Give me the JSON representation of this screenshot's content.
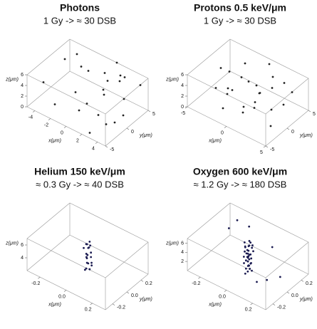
{
  "chart_data": [
    {
      "type": "scatter3d",
      "title": "Photons",
      "subtitle": "1 Gy -> ≈ 30 DSB",
      "color": "#222222",
      "xlabel": "x(μm)",
      "ylabel": "y(μm)",
      "zlabel": "z(μm)",
      "xlim": [
        -5,
        5
      ],
      "ylim": [
        -5,
        5
      ],
      "zlim": [
        0,
        6
      ],
      "xticks": [
        -4,
        -2,
        0,
        2,
        4
      ],
      "yticks": [
        -5,
        0,
        5
      ],
      "zticks": [
        0,
        2,
        4,
        6
      ],
      "x": [
        -4,
        -3,
        -1,
        1,
        2,
        3,
        4,
        -2,
        0,
        2,
        3,
        4,
        -3,
        -1,
        1,
        3,
        4,
        0,
        2,
        -4,
        1,
        3,
        2,
        4
      ],
      "y": [
        -3,
        4,
        2,
        5,
        4,
        3,
        5,
        -4,
        -2,
        0,
        -3,
        1,
        3,
        -1,
        2,
        -5,
        -3,
        4,
        1,
        2,
        -2,
        2,
        5,
        -1
      ],
      "z": [
        4,
        3,
        5,
        6,
        5,
        2,
        4,
        2,
        1,
        5,
        3,
        1,
        6,
        3,
        2,
        1,
        2,
        4,
        6,
        5,
        3,
        6,
        4,
        1
      ]
    },
    {
      "type": "scatter3d",
      "title": "Protons 0.5 keV/μm",
      "subtitle": "1 Gy -> ≈ 30 DSB",
      "color": "#222222",
      "xlabel": "x(μm)",
      "ylabel": "y(μm)",
      "zlabel": "z(μm)",
      "xlim": [
        -5,
        5
      ],
      "ylim": [
        -5,
        5
      ],
      "zlim": [
        0,
        6
      ],
      "xticks": [
        -5,
        0,
        5
      ],
      "yticks": [
        -5,
        0,
        5
      ],
      "zticks": [
        0,
        2,
        4,
        6
      ],
      "x": [
        -4,
        -3,
        -2,
        -1,
        0,
        1,
        2,
        3,
        4,
        -3,
        -1,
        1,
        3,
        -2,
        0,
        2,
        4,
        -4,
        0,
        3,
        1,
        -1,
        2,
        4,
        -2
      ],
      "y": [
        1,
        -2,
        3,
        -4,
        2,
        4,
        -1,
        0,
        3,
        4,
        -3,
        1,
        -4,
        0,
        5,
        -2,
        1,
        3,
        -1,
        3,
        -3,
        2,
        2,
        -2,
        -1
      ],
      "z": [
        4,
        3,
        5,
        2,
        3,
        4,
        5,
        2,
        4,
        1,
        4,
        3,
        5,
        2,
        5,
        4,
        3,
        2,
        1,
        5,
        2,
        3,
        4,
        1,
        3
      ]
    },
    {
      "type": "scatter3d",
      "title": "Helium 150 keV/μm",
      "subtitle": "≈  0.3 Gy -> ≈ 40 DSB",
      "color": "#1a1a50",
      "xlabel": "x(μm)",
      "ylabel": "y(μm)",
      "zlabel": "z(μm)",
      "xlim": [
        -0.3,
        0.3
      ],
      "ylim": [
        -0.3,
        0.3
      ],
      "zlim": [
        2,
        7
      ],
      "xticks": [
        -0.2,
        {
          "value": 0,
          "label": "0.0"
        },
        0.2
      ],
      "yticks": [
        -0.2,
        {
          "value": 0,
          "label": "0.0"
        },
        0.2
      ],
      "zticks": [
        4,
        6
      ],
      "x": [
        -0.02,
        0.01,
        0.0,
        0.02,
        -0.01,
        0.01,
        0.03,
        -0.02,
        0.0,
        0.02,
        -0.01,
        0.01,
        0.02,
        -0.03,
        0.0,
        0.01,
        -0.01,
        0.02,
        0.0,
        0.01
      ],
      "y": [
        0.0,
        0.01,
        -0.02,
        0.02,
        0.01,
        -0.01,
        0.0,
        0.02,
        -0.01,
        0.01,
        0.0,
        -0.02,
        0.01,
        0.0,
        0.02,
        -0.01,
        0.01,
        0.0,
        -0.02,
        0.01
      ],
      "z": [
        2.2,
        2.5,
        2.8,
        3.1,
        3.3,
        3.6,
        3.8,
        4.0,
        4.3,
        4.5,
        4.8,
        5.0,
        5.2,
        5.5,
        5.7,
        6.0,
        6.2,
        6.4,
        6.6,
        6.8
      ]
    },
    {
      "type": "scatter3d",
      "title": "Oxygen 600 keV/μm",
      "subtitle": "≈  1.2 Gy -> ≈ 180 DSB",
      "color": "#1a1a50",
      "xlabel": "x(μm)",
      "ylabel": "y(μm)",
      "zlabel": "z(μm)",
      "xlim": [
        -0.3,
        0.3
      ],
      "ylim": [
        -0.3,
        0.3
      ],
      "zlim": [
        0,
        7
      ],
      "xticks": [
        -0.2,
        {
          "value": 0,
          "label": "0.0"
        },
        0.2
      ],
      "yticks": [
        -0.2,
        {
          "value": 0,
          "label": "0.0"
        },
        0.2
      ],
      "zticks": [
        2,
        4,
        6
      ],
      "x": [
        -0.02,
        0.01,
        0.03,
        -0.01,
        0.02,
        0.0,
        -0.03,
        0.01,
        0.02,
        -0.02,
        0.0,
        0.03,
        -0.01,
        0.01,
        0.02,
        -0.02,
        0.0,
        0.01,
        -0.03,
        0.02,
        0.0,
        -0.01,
        0.03,
        0.01,
        -0.02,
        0.02,
        0.0,
        -0.01,
        0.01,
        0.03,
        -0.02,
        0.0,
        0.02,
        -0.01,
        0.01,
        -0.2,
        0.15,
        -0.1,
        0.22,
        0.1,
        -0.18,
        0.05,
        0.2
      ],
      "y": [
        0.01,
        -0.02,
        0.0,
        0.02,
        -0.01,
        0.01,
        0.0,
        0.02,
        -0.02,
        0.01,
        0.0,
        -0.01,
        0.02,
        0.0,
        0.01,
        -0.02,
        0.02,
        -0.01,
        0.01,
        0.0,
        -0.02,
        0.01,
        0.02,
        -0.01,
        0.0,
        0.02,
        0.01,
        -0.02,
        0.0,
        0.01,
        -0.01,
        0.02,
        0.0,
        0.01,
        -0.02,
        0.1,
        -0.15,
        0.2,
        0.05,
        -0.22,
        0.18,
        0.25,
        -0.1
      ],
      "z": [
        0.4,
        0.6,
        0.8,
        1.0,
        1.2,
        1.4,
        1.6,
        1.8,
        2.0,
        2.2,
        2.4,
        2.6,
        2.8,
        3.0,
        3.2,
        3.4,
        3.6,
        3.8,
        4.0,
        4.2,
        4.4,
        4.6,
        4.8,
        5.0,
        5.2,
        5.4,
        5.6,
        5.8,
        6.0,
        6.2,
        6.4,
        6.6,
        6.8,
        3.1,
        4.5,
        5.5,
        2.0,
        6.0,
        1.5,
        4.0,
        6.5,
        3.0,
        2.5
      ]
    }
  ]
}
